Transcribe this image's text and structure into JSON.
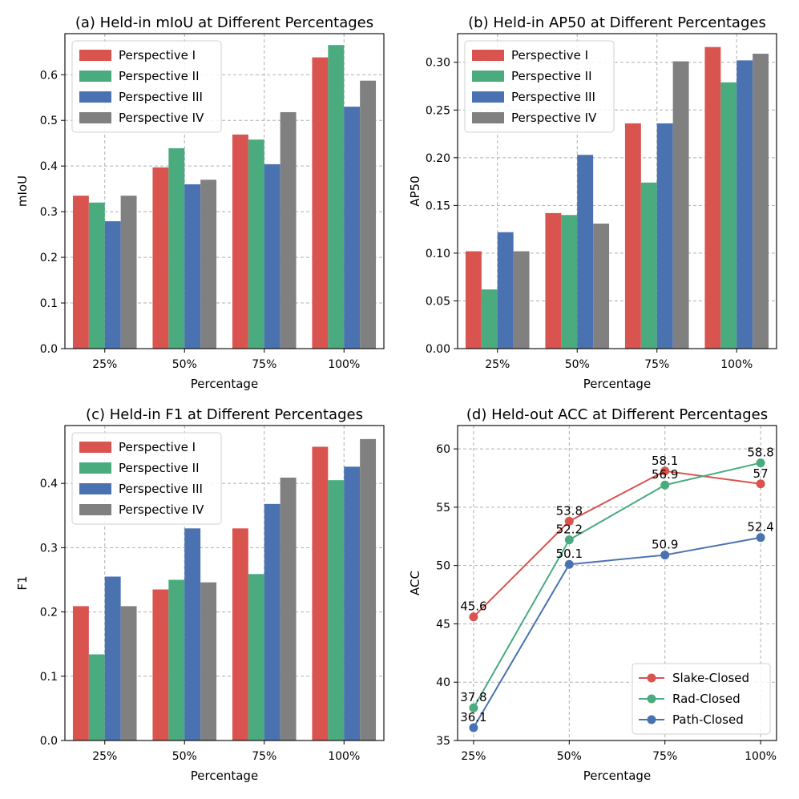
{
  "colors": {
    "s1": "#d9534f",
    "s2": "#4aab7f",
    "s3": "#4a72b0",
    "s4": "#808080"
  },
  "chart_data": [
    {
      "type": "bar",
      "title": "(a) Held-in mIoU at Different Percentages",
      "xlabel": "Percentage",
      "ylabel": "mIoU",
      "categories": [
        "25%",
        "50%",
        "75%",
        "100%"
      ],
      "ylim": [
        0,
        0.69
      ],
      "yticks": [
        0.0,
        0.1,
        0.2,
        0.3,
        0.4,
        0.5,
        0.6
      ],
      "ytick_labels": [
        "0.0",
        "0.1",
        "0.2",
        "0.3",
        "0.4",
        "0.5",
        "0.6"
      ],
      "legend_loc": "top-left",
      "series": [
        {
          "name": "Perspective I",
          "color": "#d9534f",
          "values": [
            0.335,
            0.397,
            0.469,
            0.638
          ]
        },
        {
          "name": "Perspective II",
          "color": "#4aab7f",
          "values": [
            0.32,
            0.439,
            0.458,
            0.665
          ]
        },
        {
          "name": "Perspective III",
          "color": "#4a72b0",
          "values": [
            0.279,
            0.36,
            0.404,
            0.53
          ]
        },
        {
          "name": "Perspective IV",
          "color": "#808080",
          "values": [
            0.335,
            0.37,
            0.518,
            0.587
          ]
        }
      ]
    },
    {
      "type": "bar",
      "title": "(b) Held-in AP50 at Different Percentages",
      "xlabel": "Percentage",
      "ylabel": "AP50",
      "categories": [
        "25%",
        "50%",
        "75%",
        "100%"
      ],
      "ylim": [
        0,
        0.33
      ],
      "yticks": [
        0.0,
        0.05,
        0.1,
        0.15,
        0.2,
        0.25,
        0.3
      ],
      "ytick_labels": [
        "0.00",
        "0.05",
        "0.10",
        "0.15",
        "0.20",
        "0.25",
        "0.30"
      ],
      "legend_loc": "top-left",
      "series": [
        {
          "name": "Perspective I",
          "color": "#d9534f",
          "values": [
            0.102,
            0.142,
            0.236,
            0.316
          ]
        },
        {
          "name": "Perspective II",
          "color": "#4aab7f",
          "values": [
            0.062,
            0.14,
            0.174,
            0.279
          ]
        },
        {
          "name": "Perspective III",
          "color": "#4a72b0",
          "values": [
            0.122,
            0.203,
            0.236,
            0.302
          ]
        },
        {
          "name": "Perspective IV",
          "color": "#808080",
          "values": [
            0.102,
            0.131,
            0.301,
            0.309
          ]
        }
      ]
    },
    {
      "type": "bar",
      "title": "(c) Held-in F1 at Different Percentages",
      "xlabel": "Percentage",
      "ylabel": "F1",
      "categories": [
        "25%",
        "50%",
        "75%",
        "100%"
      ],
      "ylim": [
        0,
        0.49
      ],
      "yticks": [
        0.0,
        0.1,
        0.2,
        0.3,
        0.4
      ],
      "ytick_labels": [
        "0.0",
        "0.1",
        "0.2",
        "0.3",
        "0.4"
      ],
      "legend_loc": "top-left",
      "series": [
        {
          "name": "Perspective I",
          "color": "#d9534f",
          "values": [
            0.209,
            0.235,
            0.33,
            0.457
          ]
        },
        {
          "name": "Perspective II",
          "color": "#4aab7f",
          "values": [
            0.134,
            0.25,
            0.259,
            0.405
          ]
        },
        {
          "name": "Perspective III",
          "color": "#4a72b0",
          "values": [
            0.255,
            0.33,
            0.368,
            0.426
          ]
        },
        {
          "name": "Perspective IV",
          "color": "#808080",
          "values": [
            0.209,
            0.246,
            0.409,
            0.469
          ]
        }
      ]
    },
    {
      "type": "line",
      "title": "(d) Held-out ACC at Different Percentages",
      "xlabel": "Percentage",
      "ylabel": "ACC",
      "categories": [
        "25%",
        "50%",
        "75%",
        "100%"
      ],
      "ylim": [
        35,
        62
      ],
      "yticks": [
        35,
        40,
        45,
        50,
        55,
        60
      ],
      "ytick_labels": [
        "35",
        "40",
        "45",
        "50",
        "55",
        "60"
      ],
      "legend_loc": "bottom-right",
      "series": [
        {
          "name": "Slake-Closed",
          "color": "#d9534f",
          "values": [
            45.6,
            53.8,
            58.1,
            57.0
          ],
          "labels": [
            "45.6",
            "53.8",
            "58.1",
            "57"
          ]
        },
        {
          "name": "Rad-Closed",
          "color": "#4aab7f",
          "values": [
            37.8,
            52.2,
            56.9,
            58.8
          ],
          "labels": [
            "37.8",
            "52.2",
            "56.9",
            "58.8"
          ]
        },
        {
          "name": "Path-Closed",
          "color": "#4a72b0",
          "values": [
            36.1,
            50.1,
            50.9,
            52.4
          ],
          "labels": [
            "36.1",
            "50.1",
            "50.9",
            "52.4"
          ]
        }
      ]
    }
  ]
}
